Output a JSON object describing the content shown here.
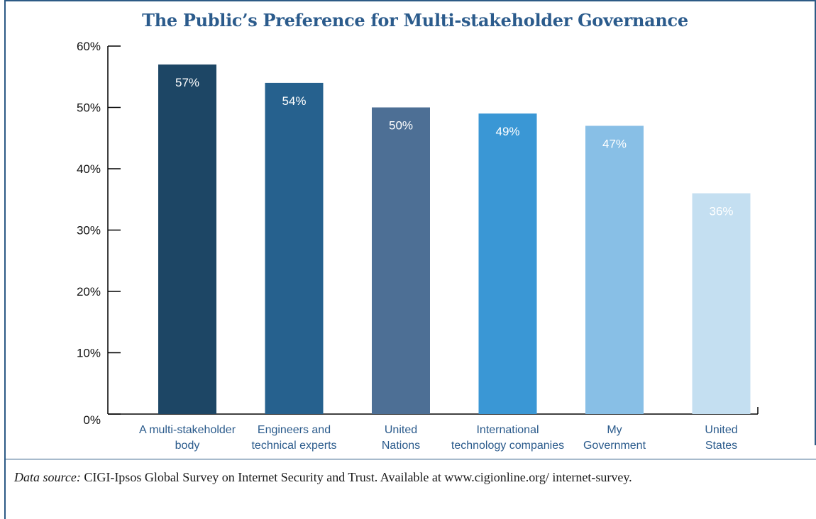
{
  "chart_data": {
    "type": "bar",
    "title": "The Public’s Preference for Multi-stakeholder Governance",
    "xlabel": "",
    "ylabel": "",
    "ylim": [
      0,
      60
    ],
    "y_ticks": [
      "0%",
      "10%",
      "20%",
      "30%",
      "40%",
      "50%",
      "60%"
    ],
    "y_tick_values": [
      0,
      10,
      20,
      30,
      40,
      50,
      60
    ],
    "categories": [
      [
        "A multi-stakeholder",
        "body"
      ],
      [
        "Engineers and",
        "technical experts"
      ],
      [
        "United",
        "Nations"
      ],
      [
        "International",
        "technology companies"
      ],
      [
        "My",
        "Government"
      ],
      [
        "United",
        "States"
      ]
    ],
    "values": [
      57,
      54,
      50,
      49,
      47,
      36
    ],
    "data_labels": [
      "57%",
      "54%",
      "50%",
      "49%",
      "47%",
      "36%"
    ],
    "bar_colors": [
      "#1d4665",
      "#26618e",
      "#4d6f95",
      "#3a97d5",
      "#88bfe6",
      "#c4dff1"
    ],
    "grid": false,
    "legend": "none"
  },
  "footer": {
    "source_label": "Data source:",
    "source_text": " CIGI-Ipsos Global Survey on Internet Security and Trust. Available at www.cigionline.org/ internet-survey."
  },
  "colors": {
    "frame": "#2c5a85",
    "title": "#2b5b8c",
    "category_label": "#2b5b8c"
  }
}
